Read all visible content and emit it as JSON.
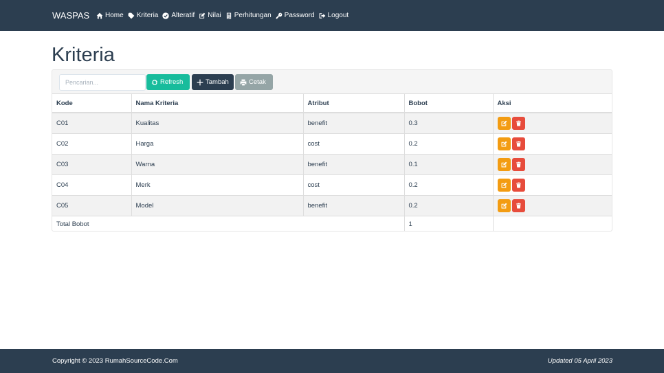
{
  "navbar": {
    "brand": "WASPAS",
    "items": [
      {
        "label": "Home",
        "icon": "home-icon"
      },
      {
        "label": "Kriteria",
        "icon": "tag-icon"
      },
      {
        "label": "Alteratif",
        "icon": "check-circle-icon"
      },
      {
        "label": "Nilai",
        "icon": "edit-icon"
      },
      {
        "label": "Perhitungan",
        "icon": "calculator-icon"
      },
      {
        "label": "Password",
        "icon": "key-icon"
      },
      {
        "label": "Logout",
        "icon": "logout-icon"
      }
    ]
  },
  "page": {
    "title": "Kriteria"
  },
  "toolbar": {
    "search_placeholder": "Pencarian...",
    "search_value": "",
    "refresh_label": "Refresh",
    "tambah_label": "Tambah",
    "cetak_label": "Cetak"
  },
  "table": {
    "headers": [
      "Kode",
      "Nama Kriteria",
      "Atribut",
      "Bobot",
      "Aksi"
    ],
    "rows": [
      {
        "kode": "C01",
        "nama": "Kualitas",
        "atribut": "benefit",
        "bobot": "0.3"
      },
      {
        "kode": "C02",
        "nama": "Harga",
        "atribut": "cost",
        "bobot": "0.2"
      },
      {
        "kode": "C03",
        "nama": "Warna",
        "atribut": "benefit",
        "bobot": "0.1"
      },
      {
        "kode": "C04",
        "nama": "Merk",
        "atribut": "cost",
        "bobot": "0.2"
      },
      {
        "kode": "C05",
        "nama": "Model",
        "atribut": "benefit",
        "bobot": "0.2"
      }
    ],
    "total_label": "Total Bobot",
    "total_value": "1"
  },
  "footer": {
    "copyright": "Copyright © 2023 RumahSourceCode.Com",
    "updated": "Updated 05 April 2023"
  },
  "colors": {
    "navbar": "#2c3e50",
    "refresh": "#18bc9c",
    "tambah": "#2c3e50",
    "cetak": "#95a5a6",
    "edit": "#f39c12",
    "delete": "#e74c3c"
  }
}
